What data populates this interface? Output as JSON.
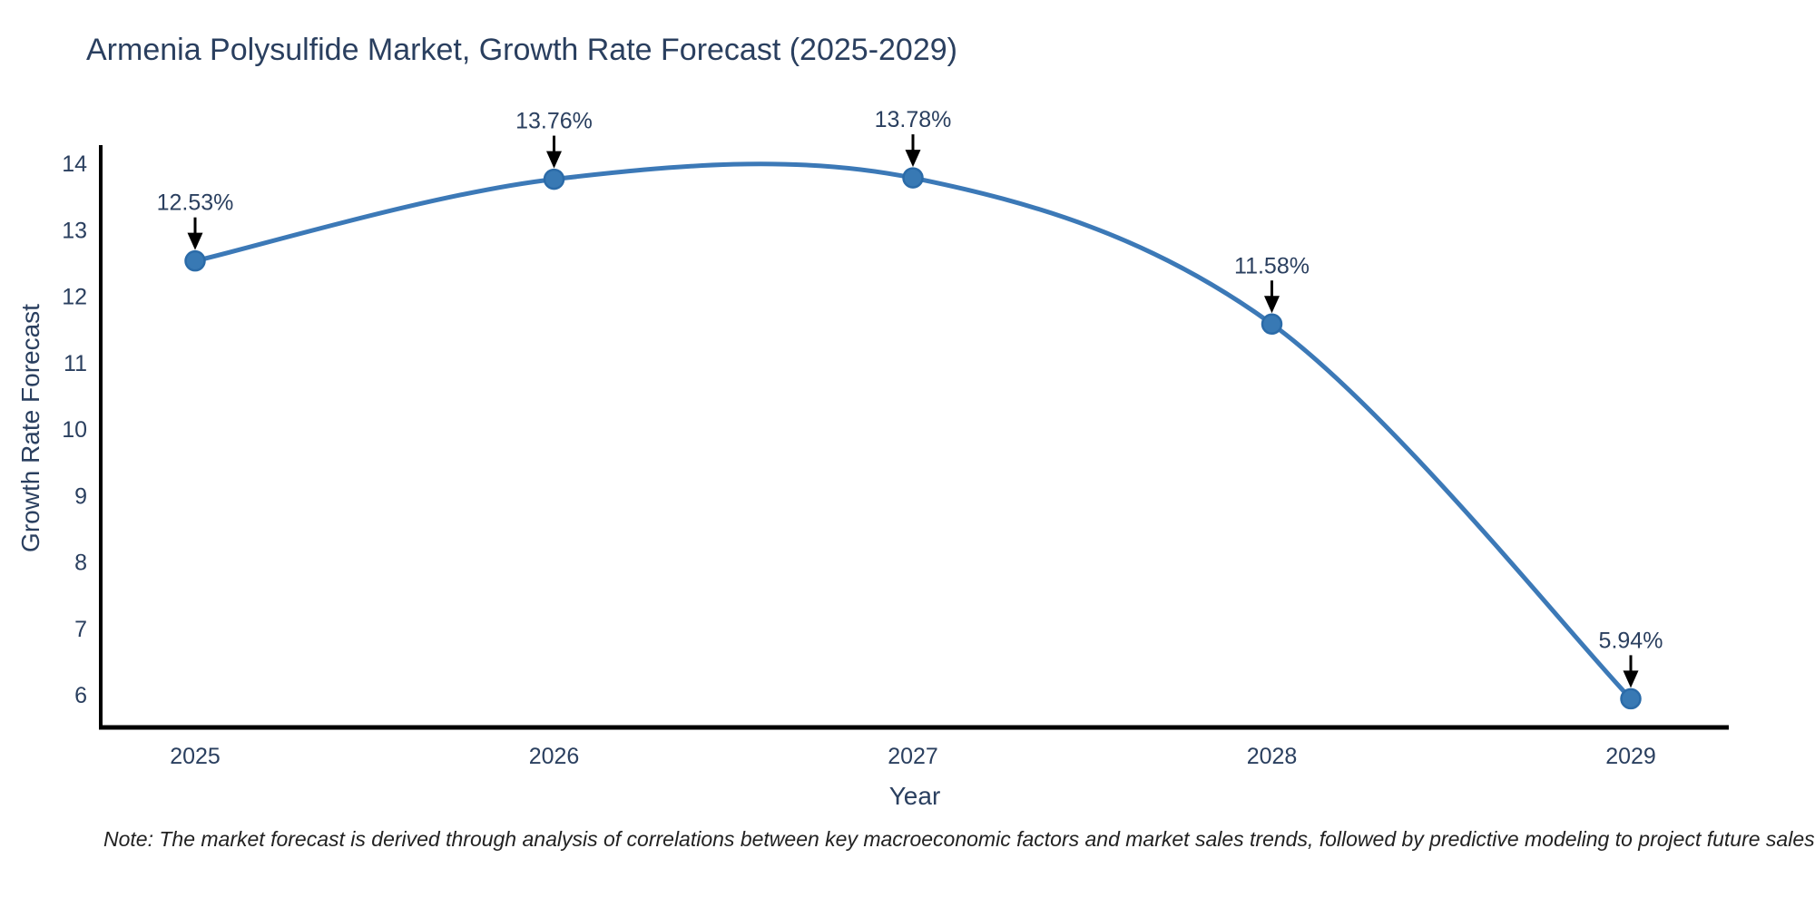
{
  "header": {
    "title": "Armenia Polysulfide Market, Growth Rate Forecast (2025-2029)"
  },
  "chart_data": {
    "type": "line",
    "title": "Armenia Polysulfide Market, Growth Rate Forecast (2025-2029)",
    "x": [
      "2025",
      "2026",
      "2027",
      "2028",
      "2029"
    ],
    "series": [
      {
        "name": "Growth Rate Forecast",
        "values": [
          12.53,
          13.76,
          13.78,
          11.58,
          5.94
        ]
      }
    ],
    "point_labels": [
      "12.53%",
      "13.76%",
      "13.78%",
      "11.58%",
      "5.94%"
    ],
    "xlabel": "Year",
    "ylabel": "Growth Rate Forecast",
    "yticks": [
      6,
      7,
      8,
      9,
      10,
      11,
      12,
      13,
      14
    ],
    "ylim": [
      5.5,
      14.3
    ],
    "grid": false,
    "line_shape": "spline",
    "legend": "none",
    "colors": {
      "line": "#3c79b7",
      "marker_fill": "#3879b4",
      "marker_edge": "#2b6ba8",
      "text": "#2a3f5f",
      "axis": "#000000",
      "annotation_arrow": "#000000",
      "note_text": "#222222",
      "background": "#ffffff"
    }
  },
  "footer": {
    "note": "Note: The market forecast is derived through analysis of correlations between key macroeconomic factors and market sales trends, followed by predictive modeling to project future sales"
  }
}
